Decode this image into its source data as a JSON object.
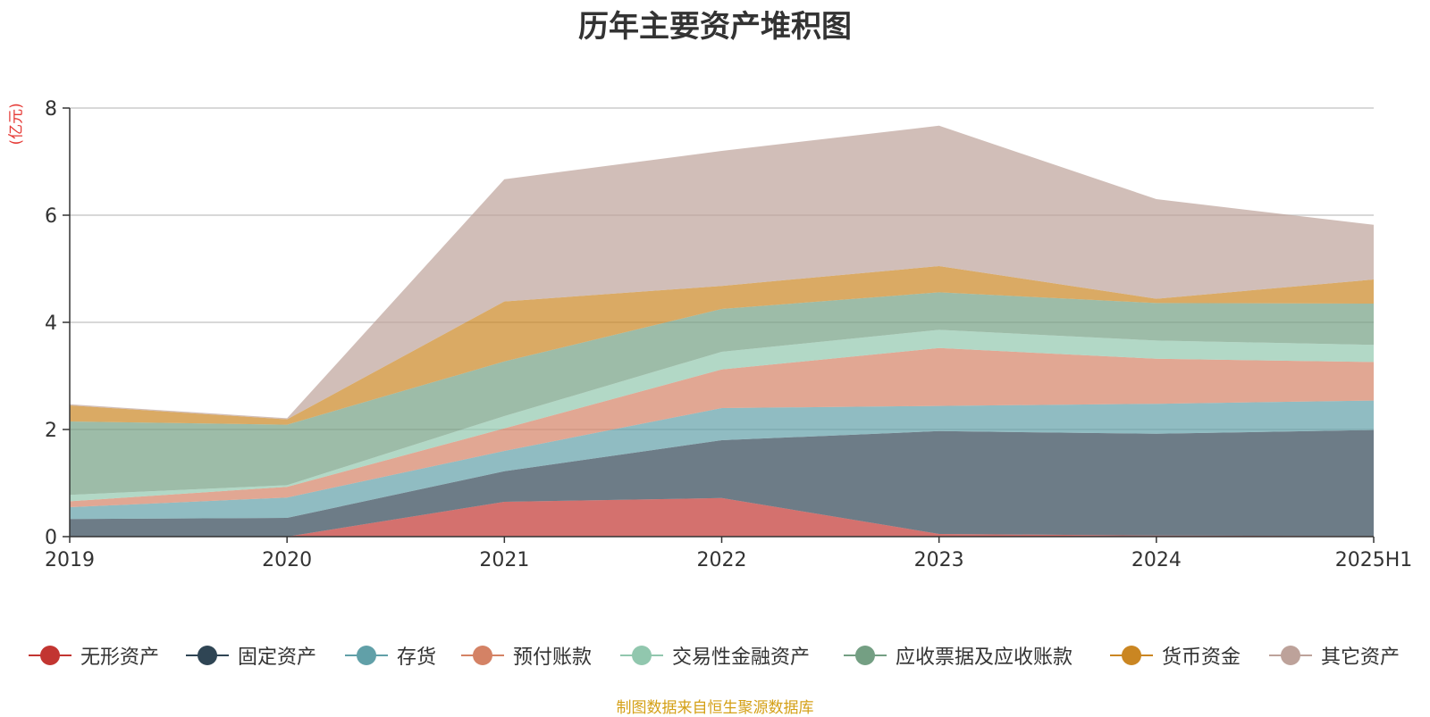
{
  "title": "历年主要资产堆积图",
  "unit_label": "(亿元)",
  "source": "制图数据来自恒生聚源数据库",
  "chart_data": {
    "type": "area",
    "stacked": true,
    "title": "历年主要资产堆积图",
    "ylabel": "(亿元)",
    "xlabel": "",
    "categories": [
      "2019",
      "2020",
      "2021",
      "2022",
      "2023",
      "2024",
      "2025H1"
    ],
    "ylim": [
      0,
      8
    ],
    "yticks": [
      0,
      2,
      4,
      6,
      8
    ],
    "grid": true,
    "legend_position": "bottom",
    "series": [
      {
        "name": "无形资产",
        "color": "#c23531",
        "values": [
          0.0,
          0.0,
          0.65,
          0.72,
          0.05,
          0.02,
          0.01
        ]
      },
      {
        "name": "固定资产",
        "color": "#2f4554",
        "values": [
          0.33,
          0.35,
          0.57,
          1.08,
          1.92,
          1.9,
          1.98
        ]
      },
      {
        "name": "存货",
        "color": "#61a0a8",
        "values": [
          0.22,
          0.38,
          0.38,
          0.6,
          0.47,
          0.56,
          0.55
        ]
      },
      {
        "name": "预付账款",
        "color": "#d48265",
        "values": [
          0.11,
          0.2,
          0.42,
          0.72,
          1.08,
          0.84,
          0.72
        ]
      },
      {
        "name": "交易性金融资产",
        "color": "#91c7ae",
        "values": [
          0.12,
          0.03,
          0.23,
          0.33,
          0.34,
          0.34,
          0.32
        ]
      },
      {
        "name": "应收票据及应收账款",
        "color": "#749f83",
        "values": [
          1.37,
          1.13,
          1.02,
          0.8,
          0.7,
          0.7,
          0.77
        ]
      },
      {
        "name": "货币资金",
        "color": "#ca8622",
        "values": [
          0.3,
          0.1,
          1.12,
          0.43,
          0.49,
          0.08,
          0.45
        ]
      },
      {
        "name": "其它资产",
        "color": "#bda29a",
        "values": [
          0.02,
          0.02,
          2.28,
          2.52,
          2.62,
          1.86,
          1.02
        ]
      }
    ]
  }
}
